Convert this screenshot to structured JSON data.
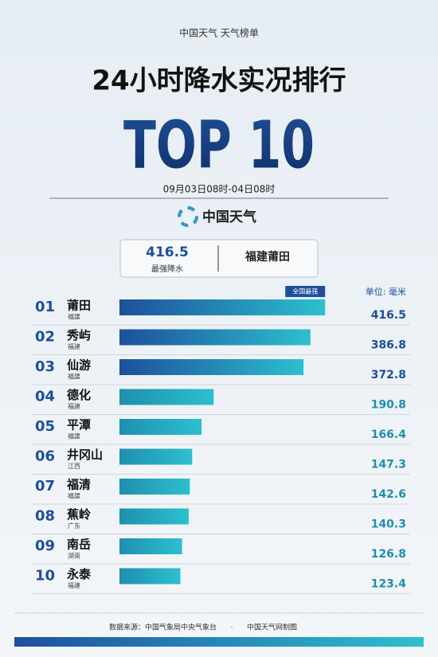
{
  "header": {
    "brand_line": "中国天气  天气榜单",
    "title": "24小时降水实况排行",
    "top": "TOP 10",
    "period": "09月03日08时-04日08时",
    "logo_text": "中国天气"
  },
  "highlight": {
    "value": "416.5",
    "label": "最强降水",
    "place": "福建莆田"
  },
  "chart_data": {
    "type": "bar",
    "orientation": "horizontal",
    "unit_label": "单位: 毫米",
    "badge": "全国最强",
    "ranks": [
      "01",
      "02",
      "03",
      "04",
      "05",
      "06",
      "07",
      "08",
      "09",
      "10"
    ],
    "categories": [
      "莆田",
      "秀屿",
      "仙游",
      "德化",
      "平潭",
      "井冈山",
      "福清",
      "蕉岭",
      "南岳",
      "永泰"
    ],
    "provinces": [
      "福建",
      "福建",
      "福建",
      "福建",
      "福建",
      "江西",
      "福建",
      "广东",
      "湖南",
      "福建"
    ],
    "values": [
      416.5,
      386.8,
      372.8,
      190.8,
      166.4,
      147.3,
      142.6,
      140.3,
      126.8,
      123.4
    ],
    "colors": [
      "#1d4f9c",
      "#1d4f9c",
      "#1d4f9c",
      "#1f8fae",
      "#1f8fae",
      "#1f8fae",
      "#1f8fae",
      "#1f8fae",
      "#1f8fae",
      "#1f8fae"
    ],
    "end_color": "#2cc0cf",
    "xlim": [
      0,
      450
    ]
  },
  "footer": {
    "source": "数据来源：中国气象局中央气象台",
    "credit": "中国天气网制图"
  }
}
